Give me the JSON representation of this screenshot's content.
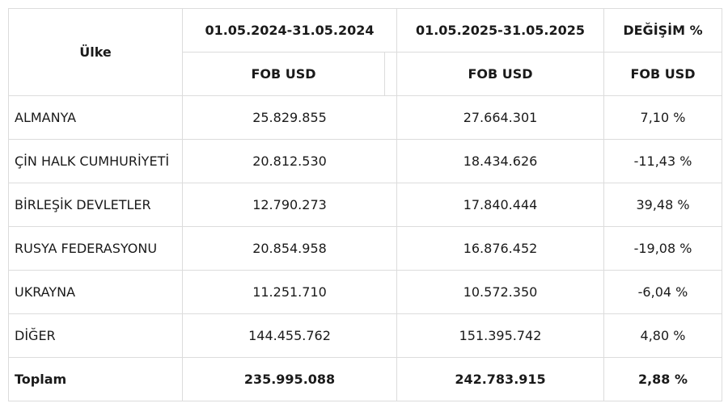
{
  "headers": {
    "country": "Ülke",
    "period_2024": "01.05.2024-31.05.2024",
    "period_2025": "01.05.2025-31.05.2025",
    "change": "DEĞİŞİM %",
    "fob_2024": "FOB USD",
    "fob_2025": "FOB USD",
    "fob_change": "FOB USD"
  },
  "rows": [
    {
      "country": "ALMANYA",
      "v2024": "25.829.855",
      "v2025": "27.664.301",
      "change": "7,10 %"
    },
    {
      "country": "ÇİN HALK CUMHURİYETİ",
      "v2024": "20.812.530",
      "v2025": "18.434.626",
      "change": "-11,43 %"
    },
    {
      "country": "BİRLEŞİK DEVLETLER",
      "v2024": "12.790.273",
      "v2025": "17.840.444",
      "change": "39,48 %"
    },
    {
      "country": "RUSYA FEDERASYONU",
      "v2024": "20.854.958",
      "v2025": "16.876.452",
      "change": "-19,08 %"
    },
    {
      "country": "UKRAYNA",
      "v2024": "11.251.710",
      "v2025": "10.572.350",
      "change": "-6,04 %"
    },
    {
      "country": "DİĞER",
      "v2024": "144.455.762",
      "v2025": "151.395.742",
      "change": "4,80 %"
    }
  ],
  "total": {
    "country": "Toplam",
    "v2024": "235.995.088",
    "v2025": "242.783.915",
    "change": "2,88 %"
  }
}
